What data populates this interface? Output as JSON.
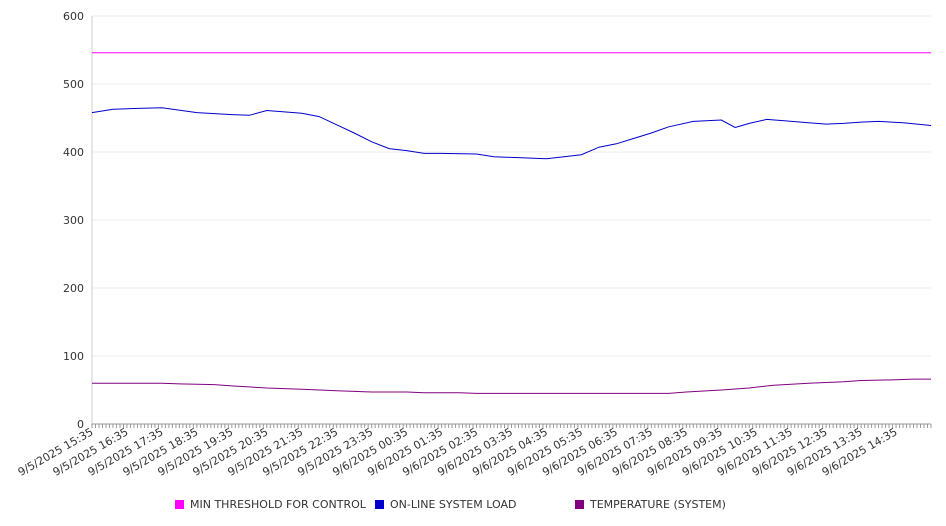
{
  "chart_data": {
    "type": "line",
    "title": "",
    "xlabel": "",
    "ylabel": "",
    "ylim": [
      0,
      600
    ],
    "yticks": [
      0,
      100,
      200,
      300,
      400,
      500,
      600
    ],
    "grid": true,
    "legend_position": "bottom",
    "x_tick_labels": [
      "9/5/2025 15:35",
      "9/5/2025 16:35",
      "9/5/2025 17:35",
      "9/5/2025 18:35",
      "9/5/2025 19:35",
      "9/5/2025 20:35",
      "9/5/2025 21:35",
      "9/5/2025 22:35",
      "9/5/2025 23:35",
      "9/6/2025 00:35",
      "9/6/2025 01:35",
      "9/6/2025 02:35",
      "9/6/2025 03:35",
      "9/6/2025 04:35",
      "9/6/2025 05:35",
      "9/6/2025 06:35",
      "9/6/2025 07:35",
      "9/6/2025 08:35",
      "9/6/2025 09:35",
      "9/6/2025 10:35",
      "9/6/2025 11:35",
      "9/6/2025 12:35",
      "9/6/2025 13:35",
      "9/6/2025 14:35"
    ],
    "series": [
      {
        "name": "MIN THRESHOLD FOR CONTROL",
        "color": "#ff00ff",
        "values": [
          546,
          546,
          546,
          546,
          546,
          546,
          546,
          546,
          546,
          546,
          546,
          546,
          546,
          546,
          546,
          546,
          546,
          546,
          546,
          546,
          546,
          546,
          546,
          546,
          546
        ]
      },
      {
        "name": "ON-LINE SYSTEM LOAD",
        "color": "#0000cc",
        "values": [
          458,
          463,
          464,
          465,
          458,
          455,
          454,
          461,
          457,
          452,
          440,
          428,
          415,
          405,
          402,
          398,
          398,
          397,
          393,
          392,
          390,
          396,
          407,
          412,
          420,
          428,
          437,
          445,
          447,
          436,
          442,
          448,
          446,
          443,
          441,
          442,
          444,
          445,
          443,
          439
        ],
        "x_index": [
          0,
          0.6,
          1.2,
          2.0,
          3.0,
          4.0,
          4.5,
          5.0,
          6.0,
          6.5,
          7.0,
          7.5,
          8.0,
          8.5,
          9.0,
          9.5,
          10.0,
          11.0,
          11.5,
          12.0,
          13.0,
          14.0,
          14.5,
          15.0,
          15.5,
          16.0,
          16.5,
          17.2,
          18.0,
          18.4,
          18.8,
          19.3,
          19.8,
          20.5,
          21.0,
          21.5,
          22.0,
          22.5,
          23.2,
          24.0
        ]
      },
      {
        "name": "TEMPERATURE (SYSTEM)",
        "color": "#800080",
        "values": [
          60,
          60,
          59,
          58,
          56,
          53,
          51,
          49,
          48,
          47,
          47,
          46,
          46,
          45,
          45,
          45,
          45,
          45,
          45,
          47,
          50,
          53,
          57,
          60,
          62,
          64,
          65,
          66,
          66
        ],
        "x_index": [
          0,
          2,
          2.5,
          3.5,
          4.0,
          5.0,
          6.0,
          7.0,
          7.5,
          8.0,
          9.0,
          9.5,
          10.5,
          11.0,
          12.5,
          14.0,
          15.0,
          16.0,
          16.5,
          17.0,
          18.0,
          18.8,
          19.5,
          20.5,
          21.5,
          22.0,
          23.0,
          23.5,
          24.0
        ]
      }
    ]
  }
}
